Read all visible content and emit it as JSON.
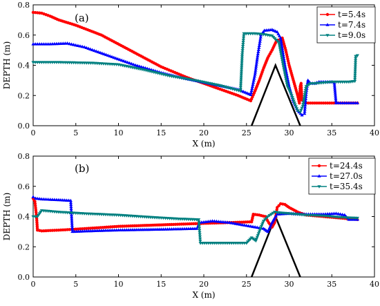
{
  "chart_data": [
    {
      "type": "line",
      "panel_label": "(a)",
      "xlabel": "X (m)",
      "ylabel": "DEPTH (m)",
      "xlim": [
        0,
        40
      ],
      "ylim": [
        0,
        0.8
      ],
      "xticks": [
        "0",
        "5",
        "10",
        "15",
        "20",
        "25",
        "30",
        "35",
        "40"
      ],
      "yticks": [
        "0.0",
        "0.2",
        "0.4",
        "0.6",
        "0.8"
      ],
      "legend_position": "top-right",
      "obstacle": {
        "x": [
          25.6,
          28.4,
          31.3
        ],
        "y": [
          0.0,
          0.4,
          0.0
        ],
        "color": "#000000"
      },
      "series": [
        {
          "name": "t=5.4s",
          "color": "#ff0000",
          "marker": "circle",
          "points": [
            [
              0,
              0.75
            ],
            [
              1,
              0.745
            ],
            [
              2,
              0.725
            ],
            [
              3,
              0.7
            ],
            [
              5,
              0.665
            ],
            [
              8,
              0.6
            ],
            [
              12,
              0.48
            ],
            [
              15,
              0.39
            ],
            [
              18,
              0.32
            ],
            [
              21,
              0.26
            ],
            [
              24,
              0.2
            ],
            [
              25.5,
              0.165
            ],
            [
              26,
              0.23
            ],
            [
              26.5,
              0.3
            ],
            [
              27,
              0.38
            ],
            [
              27.5,
              0.45
            ],
            [
              28,
              0.5
            ],
            [
              28.5,
              0.56
            ],
            [
              29.2,
              0.58
            ],
            [
              29.6,
              0.5
            ],
            [
              30,
              0.4
            ],
            [
              30.5,
              0.3
            ],
            [
              31,
              0.2
            ],
            [
              31.2,
              0.15
            ],
            [
              31.3,
              0.26
            ],
            [
              31.4,
              0.28
            ],
            [
              31.5,
              0.17
            ],
            [
              32,
              0.15
            ],
            [
              35,
              0.15
            ],
            [
              38,
              0.15
            ]
          ]
        },
        {
          "name": "t=7.4s",
          "color": "#0000ff",
          "marker": "triangle-up",
          "points": [
            [
              0,
              0.54
            ],
            [
              2,
              0.54
            ],
            [
              4,
              0.545
            ],
            [
              6,
              0.52
            ],
            [
              9,
              0.46
            ],
            [
              12,
              0.4
            ],
            [
              15,
              0.35
            ],
            [
              18,
              0.31
            ],
            [
              21,
              0.275
            ],
            [
              24,
              0.24
            ],
            [
              25.5,
              0.205
            ],
            [
              26,
              0.34
            ],
            [
              26.3,
              0.46
            ],
            [
              26.7,
              0.6
            ],
            [
              27.1,
              0.63
            ],
            [
              28,
              0.635
            ],
            [
              28.6,
              0.62
            ],
            [
              29,
              0.58
            ],
            [
              29.5,
              0.4
            ],
            [
              30,
              0.26
            ],
            [
              30.5,
              0.16
            ],
            [
              31,
              0.1
            ],
            [
              31.5,
              0.07
            ],
            [
              31.8,
              0.08
            ],
            [
              32,
              0.22
            ],
            [
              32.2,
              0.3
            ],
            [
              32.5,
              0.28
            ],
            [
              33,
              0.28
            ],
            [
              33.5,
              0.29
            ],
            [
              35,
              0.29
            ],
            [
              35.3,
              0.28
            ],
            [
              35.5,
              0.15
            ],
            [
              37,
              0.15
            ],
            [
              38,
              0.15
            ]
          ]
        },
        {
          "name": "t=9.0s",
          "color": "#008080",
          "marker": "triangle-down",
          "points": [
            [
              0,
              0.42
            ],
            [
              3,
              0.42
            ],
            [
              7,
              0.415
            ],
            [
              10,
              0.405
            ],
            [
              13,
              0.37
            ],
            [
              16,
              0.33
            ],
            [
              19,
              0.3
            ],
            [
              22,
              0.265
            ],
            [
              24.3,
              0.23
            ],
            [
              24.5,
              0.47
            ],
            [
              24.7,
              0.61
            ],
            [
              26,
              0.61
            ],
            [
              27,
              0.605
            ],
            [
              28,
              0.595
            ],
            [
              28.8,
              0.55
            ],
            [
              29.3,
              0.4
            ],
            [
              29.8,
              0.26
            ],
            [
              30.3,
              0.2
            ],
            [
              30.7,
              0.14
            ],
            [
              31,
              0.1
            ],
            [
              31.3,
              0.09
            ],
            [
              31.6,
              0.13
            ],
            [
              32,
              0.26
            ],
            [
              32.5,
              0.28
            ],
            [
              33,
              0.28
            ],
            [
              34,
              0.285
            ],
            [
              35,
              0.29
            ],
            [
              37,
              0.29
            ],
            [
              37.7,
              0.295
            ],
            [
              37.8,
              0.46
            ],
            [
              38,
              0.465
            ]
          ]
        }
      ]
    },
    {
      "type": "line",
      "panel_label": "(b)",
      "xlabel": "X (m)",
      "ylabel": "DEPTH (m)",
      "xlim": [
        0,
        40
      ],
      "ylim": [
        0,
        0.8
      ],
      "xticks": [
        "0",
        "5",
        "10",
        "15",
        "20",
        "25",
        "30",
        "35",
        "40"
      ],
      "yticks": [
        "0.0",
        "0.2",
        "0.4",
        "0.6",
        "0.8"
      ],
      "legend_position": "top-right",
      "obstacle": {
        "x": [
          25.6,
          28.4,
          31.3
        ],
        "y": [
          0.0,
          0.4,
          0.0
        ],
        "color": "#000000"
      },
      "series": [
        {
          "name": "t=24.4s",
          "color": "#ff0000",
          "marker": "circle",
          "points": [
            [
              0,
              0.52
            ],
            [
              0.2,
              0.5
            ],
            [
              0.4,
              0.4
            ],
            [
              0.5,
              0.31
            ],
            [
              1,
              0.305
            ],
            [
              3,
              0.31
            ],
            [
              6,
              0.32
            ],
            [
              10,
              0.335
            ],
            [
              15,
              0.345
            ],
            [
              20,
              0.355
            ],
            [
              23,
              0.36
            ],
            [
              25.6,
              0.365
            ],
            [
              25.8,
              0.415
            ],
            [
              26.5,
              0.41
            ],
            [
              27.2,
              0.4
            ],
            [
              27.6,
              0.36
            ],
            [
              28,
              0.33
            ],
            [
              28.3,
              0.36
            ],
            [
              28.6,
              0.46
            ],
            [
              29,
              0.485
            ],
            [
              29.5,
              0.48
            ],
            [
              30,
              0.46
            ],
            [
              31,
              0.43
            ],
            [
              32,
              0.41
            ],
            [
              34,
              0.4
            ],
            [
              36,
              0.39
            ],
            [
              38,
              0.38
            ]
          ]
        },
        {
          "name": "t=27.0s",
          "color": "#0000ff",
          "marker": "triangle-up",
          "points": [
            [
              0,
              0.53
            ],
            [
              0.3,
              0.52
            ],
            [
              1,
              0.515
            ],
            [
              3,
              0.51
            ],
            [
              4.4,
              0.505
            ],
            [
              4.6,
              0.3
            ],
            [
              7,
              0.305
            ],
            [
              10,
              0.31
            ],
            [
              15,
              0.315
            ],
            [
              19.2,
              0.32
            ],
            [
              19.5,
              0.36
            ],
            [
              21,
              0.37
            ],
            [
              23,
              0.36
            ],
            [
              25,
              0.34
            ],
            [
              27,
              0.32
            ],
            [
              27.5,
              0.3
            ],
            [
              28,
              0.36
            ],
            [
              28.3,
              0.39
            ],
            [
              28.6,
              0.415
            ],
            [
              30,
              0.42
            ],
            [
              32,
              0.415
            ],
            [
              34,
              0.415
            ],
            [
              35.5,
              0.42
            ],
            [
              36.5,
              0.41
            ],
            [
              37,
              0.38
            ],
            [
              38,
              0.38
            ]
          ]
        },
        {
          "name": "t=35.4s",
          "color": "#008080",
          "marker": "triangle-down",
          "points": [
            [
              0,
              0.4
            ],
            [
              0.5,
              0.4
            ],
            [
              1,
              0.44
            ],
            [
              3,
              0.43
            ],
            [
              6,
              0.42
            ],
            [
              10,
              0.41
            ],
            [
              14,
              0.395
            ],
            [
              17,
              0.385
            ],
            [
              19.4,
              0.38
            ],
            [
              19.6,
              0.225
            ],
            [
              22,
              0.225
            ],
            [
              25,
              0.225
            ],
            [
              25.6,
              0.26
            ],
            [
              26.1,
              0.24
            ],
            [
              26.5,
              0.3
            ],
            [
              27,
              0.37
            ],
            [
              27.5,
              0.4
            ],
            [
              28.3,
              0.43
            ],
            [
              29,
              0.425
            ],
            [
              30,
              0.42
            ],
            [
              32,
              0.41
            ],
            [
              34,
              0.405
            ],
            [
              36,
              0.395
            ],
            [
              38,
              0.39
            ]
          ]
        }
      ]
    }
  ]
}
